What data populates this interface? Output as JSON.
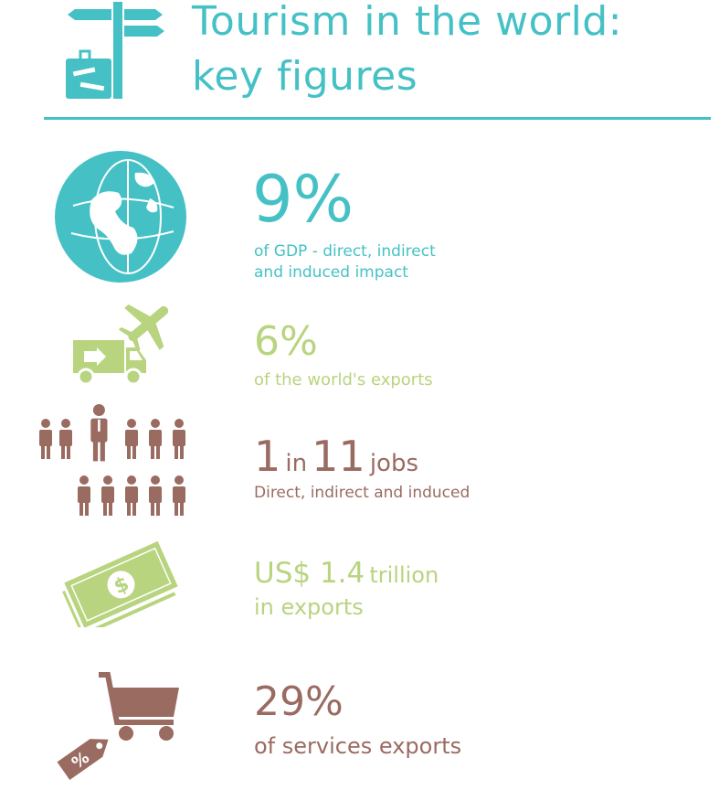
{
  "header": {
    "title_line1": "Tourism in the world:",
    "title_line2": "key figures",
    "icon": "signpost-suitcase-icon"
  },
  "colors": {
    "teal": "#45c1c6",
    "green": "#b8d47f",
    "brown": "#9a6b61"
  },
  "stats": {
    "gdp": {
      "value": "9%",
      "caption_line1": "of GDP - direct, indirect",
      "caption_line2": "and induced impact",
      "icon": "globe-icon"
    },
    "exports": {
      "value": "6%",
      "caption": "of the world's exports",
      "icon": "truck-airplane-icon"
    },
    "jobs": {
      "num1": "1",
      "word1": "in",
      "num2": "11",
      "word2": "jobs",
      "caption": "Direct, indirect and induced",
      "icon": "people-icon"
    },
    "trillion": {
      "currency_value": "US$ 1.4",
      "unit": "trillion",
      "caption": "in exports",
      "icon": "banknotes-icon"
    },
    "services": {
      "value": "29%",
      "caption": "of services exports",
      "icon": "cart-percent-tag-icon",
      "tag_text": "%",
      "money_symbol": "$"
    }
  }
}
